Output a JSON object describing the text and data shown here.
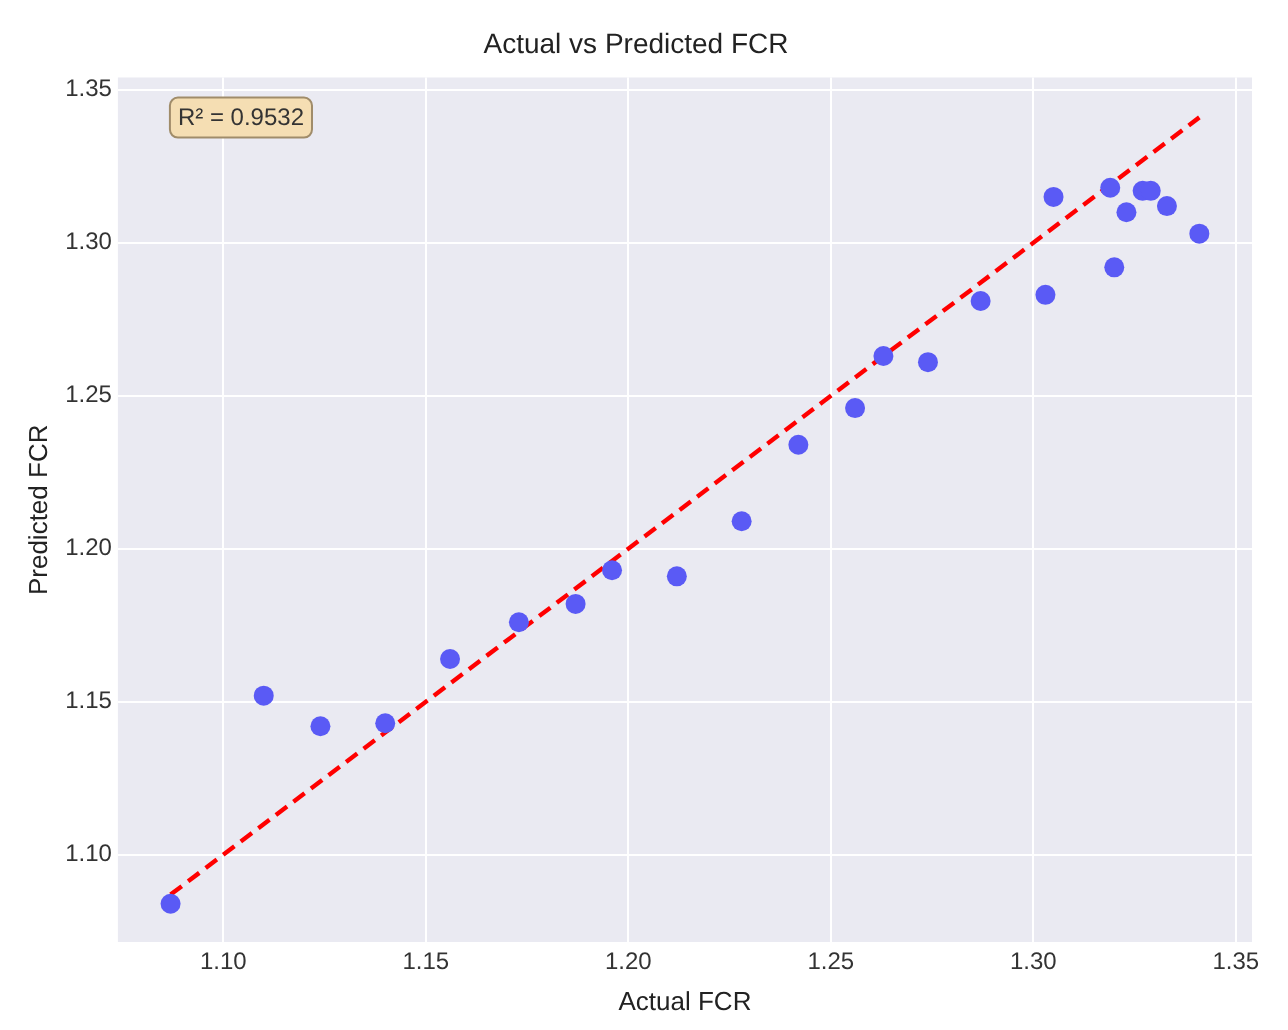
{
  "chart_data": {
    "type": "scatter",
    "title": "Actual vs Predicted FCR",
    "xlabel": "Actual FCR",
    "ylabel": "Predicted FCR",
    "annotations": [
      "R² = 0.9532"
    ],
    "xlim": [
      1.074,
      1.354
    ],
    "ylim": [
      1.0715,
      1.354
    ],
    "xticks": [
      {
        "value": 1.1,
        "label": "1.10"
      },
      {
        "value": 1.15,
        "label": "1.15"
      },
      {
        "value": 1.2,
        "label": "1.20"
      },
      {
        "value": 1.25,
        "label": "1.25"
      },
      {
        "value": 1.3,
        "label": "1.30"
      },
      {
        "value": 1.35,
        "label": "1.35"
      }
    ],
    "yticks": [
      {
        "value": 1.1,
        "label": "1.10"
      },
      {
        "value": 1.15,
        "label": "1.15"
      },
      {
        "value": 1.2,
        "label": "1.20"
      },
      {
        "value": 1.25,
        "label": "1.25"
      },
      {
        "value": 1.3,
        "label": "1.30"
      },
      {
        "value": 1.35,
        "label": "1.35"
      }
    ],
    "grid": true,
    "legend": false,
    "marker": "circle",
    "series": [
      {
        "color": "#5a5af5",
        "x": [
          1.087,
          1.11,
          1.124,
          1.14,
          1.156,
          1.173,
          1.187,
          1.196,
          1.212,
          1.228,
          1.242,
          1.256,
          1.263,
          1.274,
          1.287,
          1.303,
          1.305,
          1.319,
          1.32,
          1.323,
          1.327,
          1.329,
          1.333,
          1.341
        ],
        "values": [
          1.084,
          1.152,
          1.142,
          1.143,
          1.164,
          1.176,
          1.182,
          1.193,
          1.191,
          1.209,
          1.234,
          1.246,
          1.263,
          1.261,
          1.281,
          1.283,
          1.315,
          1.318,
          1.292,
          1.31,
          1.317,
          1.317,
          1.312,
          1.303
        ]
      },
      {
        "type": "line",
        "color": "#ff0000",
        "line_style": "dashed",
        "marker": "none",
        "x": [
          1.087,
          1.341
        ],
        "values": [
          1.087,
          1.341
        ]
      }
    ]
  }
}
